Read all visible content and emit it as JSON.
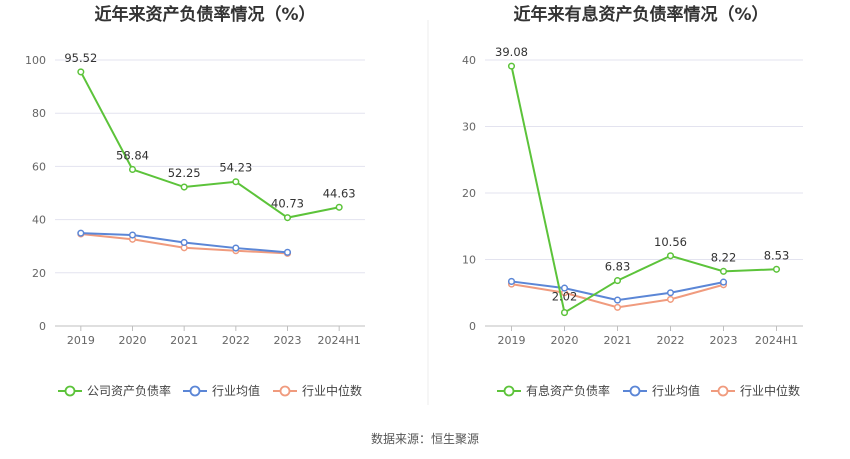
{
  "source": "数据来源：恒生聚源",
  "colors": {
    "primary": "#5cc33a",
    "avg": "#5b86d6",
    "median": "#f09b7e",
    "grid": "#e3e3ef",
    "axis": "#bfbfbf"
  },
  "chart_data": [
    {
      "type": "line",
      "title": "近年来资产负债率情况（%）",
      "categories": [
        "2019",
        "2020",
        "2021",
        "2022",
        "2023",
        "2024H1"
      ],
      "ylim": [
        0,
        100
      ],
      "yticks": [
        0,
        20,
        40,
        60,
        80,
        100
      ],
      "grid": true,
      "legend_position": "bottom",
      "series": [
        {
          "name": "公司资产负债率",
          "color_key": "primary",
          "labels": true,
          "values": [
            95.52,
            58.84,
            52.25,
            54.23,
            40.73,
            44.63
          ]
        },
        {
          "name": "行业均值",
          "color_key": "avg",
          "labels": false,
          "values": [
            34.9,
            34.2,
            31.4,
            29.3,
            27.7,
            null
          ]
        },
        {
          "name": "行业中位数",
          "color_key": "median",
          "labels": false,
          "values": [
            34.6,
            32.6,
            29.4,
            28.3,
            27.3,
            null
          ]
        }
      ]
    },
    {
      "type": "line",
      "title": "近年来有息资产负债率情况（%）",
      "categories": [
        "2019",
        "2020",
        "2021",
        "2022",
        "2023",
        "2024H1"
      ],
      "ylim": [
        0,
        40
      ],
      "yticks": [
        0,
        10,
        20,
        30,
        40
      ],
      "grid": true,
      "legend_position": "bottom",
      "series": [
        {
          "name": "有息资产负债率",
          "color_key": "primary",
          "labels": true,
          "values": [
            39.08,
            2.02,
            6.83,
            10.56,
            8.22,
            8.53
          ]
        },
        {
          "name": "行业均值",
          "color_key": "avg",
          "labels": false,
          "values": [
            6.7,
            5.7,
            3.9,
            5.0,
            6.6,
            null
          ]
        },
        {
          "name": "行业中位数",
          "color_key": "median",
          "labels": false,
          "values": [
            6.3,
            5.0,
            2.8,
            4.0,
            6.2,
            null
          ]
        }
      ]
    }
  ]
}
